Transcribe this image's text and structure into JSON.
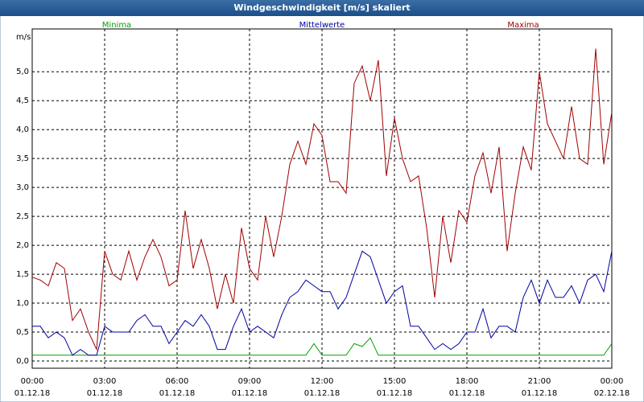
{
  "chart_data": {
    "type": "line",
    "title": "Windgeschwindigkeit [m/s] skaliert",
    "y_label": "m/s",
    "x": [
      0,
      20,
      40,
      60,
      80,
      100,
      120,
      140,
      160,
      180,
      200,
      220,
      240,
      260,
      280,
      300,
      320,
      340,
      360,
      380,
      400,
      420,
      440,
      460,
      480,
      500,
      520,
      540,
      560,
      580,
      600,
      620,
      640,
      660,
      680,
      700,
      720,
      740,
      760,
      780,
      800,
      820,
      840,
      860,
      880,
      900,
      920,
      940,
      960,
      980,
      1000,
      1020,
      1040,
      1060,
      1080,
      1100,
      1120,
      1140,
      1160,
      1180,
      1200,
      1220,
      1240,
      1260,
      1280,
      1300,
      1320,
      1340,
      1360,
      1380,
      1400,
      1420,
      1440
    ],
    "xlim": [
      0,
      1440
    ],
    "xticks": [
      {
        "value": 0,
        "label": "00:00",
        "date": "01.12.18"
      },
      {
        "value": 180,
        "label": "03:00",
        "date": "01.12.18"
      },
      {
        "value": 360,
        "label": "06:00",
        "date": "01.12.18"
      },
      {
        "value": 540,
        "label": "09:00",
        "date": "01.12.18"
      },
      {
        "value": 720,
        "label": "12:00",
        "date": "01.12.18"
      },
      {
        "value": 900,
        "label": "15:00",
        "date": "01.12.18"
      },
      {
        "value": 1080,
        "label": "18:00",
        "date": "01.12.18"
      },
      {
        "value": 1260,
        "label": "21:00",
        "date": "01.12.18"
      },
      {
        "value": 1440,
        "label": "00:00",
        "date": "02.12.18"
      }
    ],
    "ylim": [
      -0.125,
      5.74
    ],
    "yticks": [
      {
        "value": 0,
        "label": "0,0"
      },
      {
        "value": 0.5,
        "label": "0,5"
      },
      {
        "value": 1,
        "label": "1,0"
      },
      {
        "value": 1.5,
        "label": "1,5"
      },
      {
        "value": 2,
        "label": "2,0"
      },
      {
        "value": 2.5,
        "label": "2,5"
      },
      {
        "value": 3,
        "label": "3,0"
      },
      {
        "value": 3.5,
        "label": "3,5"
      },
      {
        "value": 4,
        "label": "4,0"
      },
      {
        "value": 4.5,
        "label": "4,5"
      },
      {
        "value": 5,
        "label": "5,0"
      }
    ],
    "grid": true,
    "series": [
      {
        "name": "Minima",
        "color": "#00a000",
        "values": [
          0.1,
          0.1,
          0.1,
          0.1,
          0.1,
          0.1,
          0.1,
          0.1,
          0.1,
          0.1,
          0.1,
          0.1,
          0.1,
          0.1,
          0.1,
          0.1,
          0.1,
          0.1,
          0.1,
          0.1,
          0.1,
          0.1,
          0.1,
          0.1,
          0.1,
          0.1,
          0.1,
          0.1,
          0.1,
          0.1,
          0.1,
          0.1,
          0.1,
          0.1,
          0.1,
          0.3,
          0.1,
          0.1,
          0.1,
          0.1,
          0.3,
          0.25,
          0.4,
          0.1,
          0.1,
          0.1,
          0.1,
          0.1,
          0.1,
          0.1,
          0.1,
          0.1,
          0.1,
          0.1,
          0.1,
          0.1,
          0.1,
          0.1,
          0.1,
          0.1,
          0.1,
          0.1,
          0.1,
          0.1,
          0.1,
          0.1,
          0.1,
          0.1,
          0.1,
          0.1,
          0.1,
          0.1,
          0.3
        ]
      },
      {
        "name": "Mittelwerte",
        "color": "#0000a0",
        "values": [
          0.6,
          0.6,
          0.4,
          0.5,
          0.4,
          0.1,
          0.2,
          0.1,
          0.1,
          0.6,
          0.5,
          0.5,
          0.5,
          0.7,
          0.8,
          0.6,
          0.6,
          0.3,
          0.5,
          0.7,
          0.6,
          0.8,
          0.6,
          0.2,
          0.2,
          0.6,
          0.9,
          0.5,
          0.6,
          0.5,
          0.4,
          0.8,
          1.1,
          1.2,
          1.4,
          1.3,
          1.2,
          1.2,
          0.9,
          1.1,
          1.5,
          1.9,
          1.8,
          1.4,
          1.0,
          1.2,
          1.3,
          0.6,
          0.6,
          0.4,
          0.2,
          0.3,
          0.2,
          0.3,
          0.5,
          0.5,
          0.9,
          0.4,
          0.6,
          0.6,
          0.5,
          1.1,
          1.4,
          1.0,
          1.4,
          1.1,
          1.1,
          1.3,
          1.0,
          1.4,
          1.5,
          1.2,
          1.9
        ]
      },
      {
        "name": "Maxima",
        "color": "#a00000",
        "values": [
          1.45,
          1.4,
          1.3,
          1.7,
          1.6,
          0.7,
          0.9,
          0.5,
          0.2,
          1.9,
          1.5,
          1.4,
          1.9,
          1.4,
          1.8,
          2.1,
          1.8,
          1.3,
          1.4,
          2.6,
          1.6,
          2.1,
          1.6,
          0.9,
          1.5,
          1.0,
          2.3,
          1.6,
          1.4,
          2.5,
          1.8,
          2.5,
          3.4,
          3.8,
          3.4,
          4.1,
          3.9,
          3.1,
          3.1,
          2.9,
          4.8,
          5.1,
          4.5,
          5.2,
          3.2,
          4.2,
          3.5,
          3.1,
          3.2,
          2.3,
          1.1,
          2.5,
          1.7,
          2.6,
          2.4,
          3.2,
          3.6,
          2.9,
          3.7,
          1.9,
          2.9,
          3.7,
          3.3,
          5.0,
          4.1,
          3.8,
          3.5,
          4.4,
          3.5,
          3.4,
          5.4,
          3.4,
          4.3
        ]
      }
    ]
  }
}
